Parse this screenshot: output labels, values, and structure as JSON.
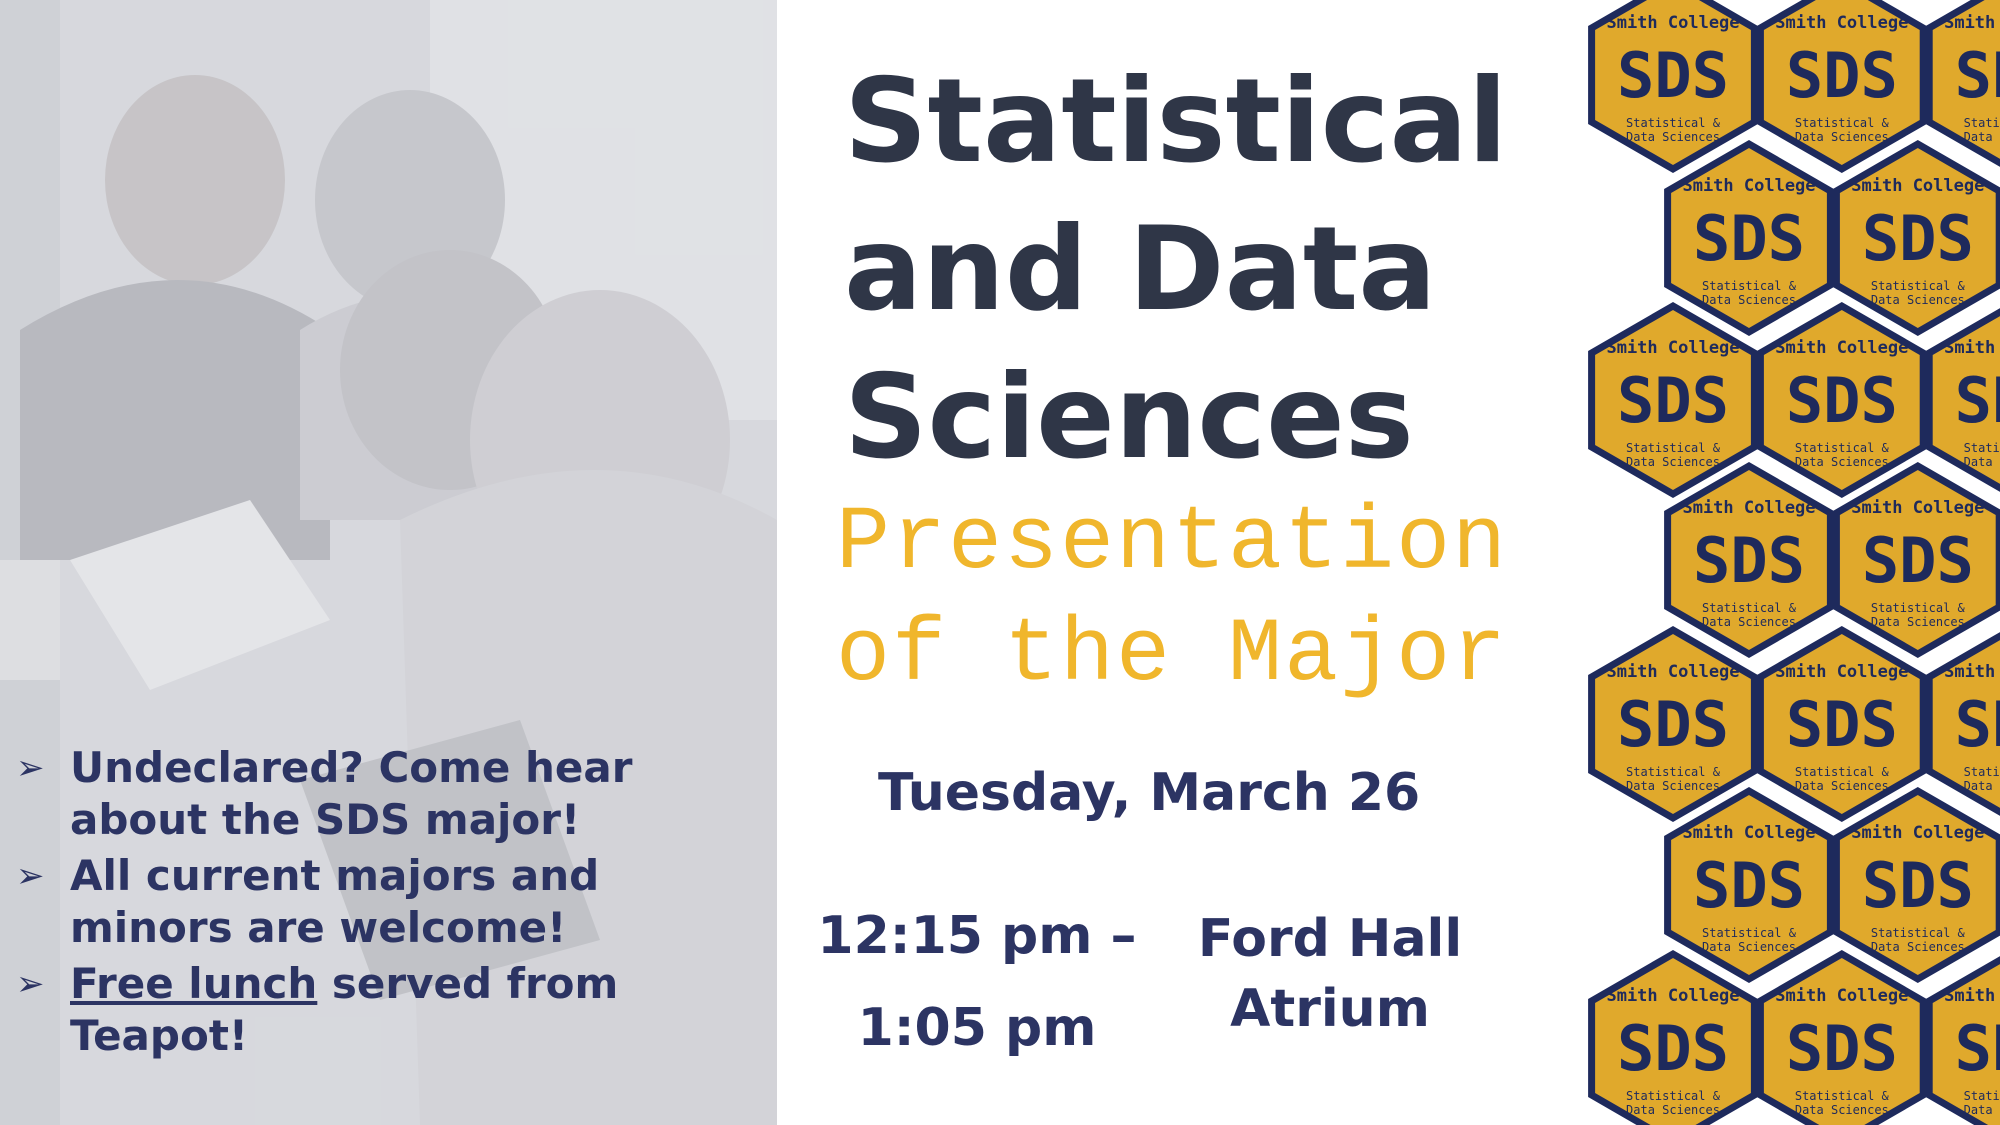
{
  "bullets": [
    {
      "parts": [
        "Undeclared? Come hear about the SDS major!"
      ],
      "underline_first": false
    },
    {
      "parts": [
        "All current majors and minors are welcome!"
      ],
      "underline_first": false
    },
    {
      "parts": [
        "Free lunch",
        " served from Teapot!"
      ],
      "underline_first": true
    }
  ],
  "title": [
    "Statistical",
    "and Data",
    "Sciences"
  ],
  "subtitle": [
    "Presentation",
    "of the Major"
  ],
  "date": "Tuesday, March 26",
  "time": [
    "12:15 pm –",
    "1:05 pm"
  ],
  "place": [
    "Ford Hall",
    "Atrium"
  ],
  "sticker": {
    "top": "Smith College",
    "main": "SDS",
    "bottom1": "Statistical &",
    "bottom2": "Data Sciences"
  },
  "colors": {
    "navy": "#2c3463",
    "title": "#2f3647",
    "gold": "#f0b62c",
    "hex_fill": "#e0a92c",
    "hex_border": "#1e2a5c"
  },
  "icons": {
    "bullet": "arrowhead-icon"
  }
}
